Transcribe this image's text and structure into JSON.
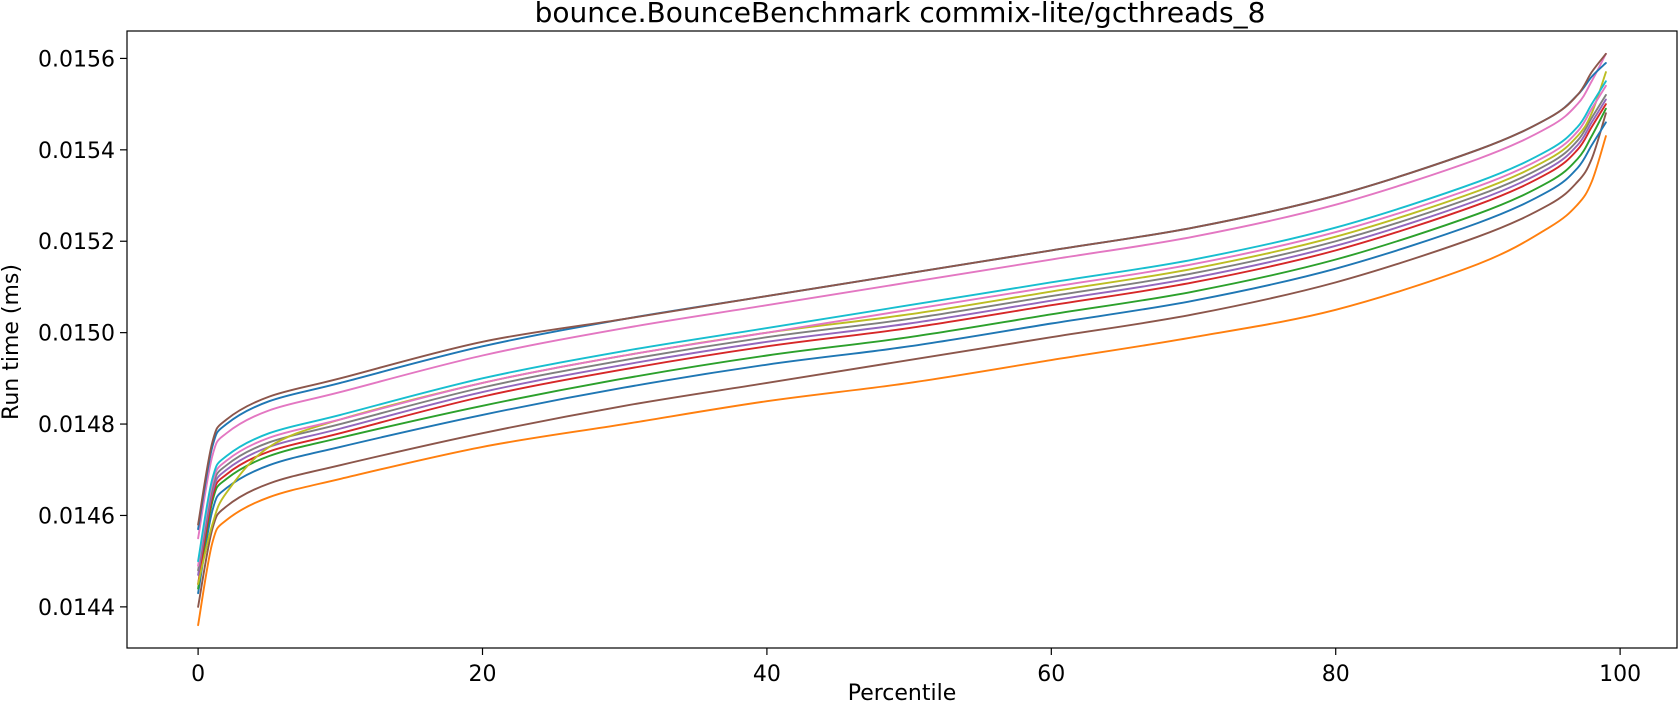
{
  "chart_data": {
    "type": "line",
    "title": "bounce.BounceBenchmark commix-lite/gcthreads_8",
    "xlabel": "Percentile",
    "ylabel": "Run time (ms)",
    "xlim": [
      -5,
      104
    ],
    "ylim": [
      0.01431,
      0.01566
    ],
    "xticks": [
      0,
      20,
      40,
      60,
      80,
      100
    ],
    "xtick_labels": [
      "0",
      "20",
      "40",
      "60",
      "80",
      "100"
    ],
    "yticks": [
      0.0144,
      0.0146,
      0.0148,
      0.015,
      0.0152,
      0.0154,
      0.0156
    ],
    "ytick_labels": [
      "0.0144",
      "0.0146",
      "0.0148",
      "0.0150",
      "0.0152",
      "0.0154",
      "0.0156"
    ],
    "grid": false,
    "x": [
      0,
      1,
      2,
      5,
      10,
      20,
      30,
      40,
      50,
      60,
      70,
      80,
      90,
      95,
      97,
      98,
      99
    ],
    "series": [
      {
        "color": "#ff7f0e",
        "values": [
          0.01436,
          0.01454,
          0.01459,
          0.01464,
          0.01468,
          0.01475,
          0.0148,
          0.01485,
          0.01489,
          0.01494,
          0.01499,
          0.01505,
          0.01515,
          0.01523,
          0.01528,
          0.01533,
          0.01543
        ]
      },
      {
        "color": "#8c564b",
        "values": [
          0.0144,
          0.01457,
          0.01462,
          0.01467,
          0.01471,
          0.01478,
          0.01484,
          0.01489,
          0.01494,
          0.01499,
          0.01504,
          0.01511,
          0.01521,
          0.01528,
          0.01533,
          0.01538,
          0.01548
        ]
      },
      {
        "color": "#1f77b4",
        "values": [
          0.01443,
          0.01461,
          0.01466,
          0.01471,
          0.01475,
          0.01482,
          0.01488,
          0.01493,
          0.01497,
          0.01502,
          0.01507,
          0.01514,
          0.01524,
          0.01531,
          0.01536,
          0.01541,
          0.01546
        ]
      },
      {
        "color": "#2ca02c",
        "values": [
          0.01444,
          0.01463,
          0.01468,
          0.01473,
          0.01477,
          0.01484,
          0.0149,
          0.01495,
          0.01499,
          0.01504,
          0.01509,
          0.01516,
          0.01526,
          0.01533,
          0.01538,
          0.01543,
          0.01549
        ]
      },
      {
        "color": "#d62728",
        "values": [
          0.01445,
          0.01464,
          0.01469,
          0.01474,
          0.01478,
          0.01486,
          0.01492,
          0.01497,
          0.01501,
          0.01506,
          0.01511,
          0.01518,
          0.01528,
          0.01535,
          0.0154,
          0.01545,
          0.0155
        ]
      },
      {
        "color": "#9467bd",
        "values": [
          0.01447,
          0.01465,
          0.0147,
          0.01475,
          0.01479,
          0.01487,
          0.01493,
          0.01498,
          0.01502,
          0.01507,
          0.01512,
          0.01519,
          0.01529,
          0.01536,
          0.01541,
          0.01546,
          0.01551
        ]
      },
      {
        "color": "#7f7f7f",
        "values": [
          0.01448,
          0.01466,
          0.01471,
          0.01476,
          0.0148,
          0.01488,
          0.01494,
          0.01499,
          0.01503,
          0.01508,
          0.01513,
          0.0152,
          0.0153,
          0.01537,
          0.01542,
          0.01547,
          0.01552
        ]
      },
      {
        "color": "#bcbd22",
        "values": [
          0.01445,
          0.01458,
          0.01465,
          0.01475,
          0.01481,
          0.01489,
          0.01495,
          0.015,
          0.01504,
          0.01509,
          0.01514,
          0.01521,
          0.01531,
          0.01538,
          0.01543,
          0.01548,
          0.01557
        ]
      },
      {
        "color": "#e377c2",
        "values": [
          0.01449,
          0.01467,
          0.01472,
          0.01477,
          0.01481,
          0.01489,
          0.01495,
          0.015,
          0.01505,
          0.0151,
          0.01515,
          0.01522,
          0.01532,
          0.01539,
          0.01544,
          0.01549,
          0.01554
        ]
      },
      {
        "color": "#17becf",
        "values": [
          0.0145,
          0.01468,
          0.01473,
          0.01478,
          0.01482,
          0.0149,
          0.01496,
          0.01501,
          0.01506,
          0.01511,
          0.01516,
          0.01523,
          0.01533,
          0.0154,
          0.01545,
          0.0155,
          0.01555
        ]
      },
      {
        "color": "#e377c2",
        "values": [
          0.01455,
          0.01473,
          0.01478,
          0.01483,
          0.01487,
          0.01495,
          0.01501,
          0.01506,
          0.01511,
          0.01516,
          0.01521,
          0.01528,
          0.01538,
          0.01545,
          0.0155,
          0.01555,
          0.01561
        ]
      },
      {
        "color": "#1f77b4",
        "values": [
          0.01457,
          0.01475,
          0.0148,
          0.01485,
          0.01489,
          0.01497,
          0.01503,
          0.01508,
          0.01513,
          0.01518,
          0.01523,
          0.0153,
          0.0154,
          0.01547,
          0.01552,
          0.01556,
          0.01559
        ]
      },
      {
        "color": "#8c564b",
        "values": [
          0.01458,
          0.01476,
          0.01481,
          0.01486,
          0.0149,
          0.01498,
          0.01503,
          0.01508,
          0.01513,
          0.01518,
          0.01523,
          0.0153,
          0.0154,
          0.01547,
          0.01552,
          0.01557,
          0.01561
        ]
      }
    ]
  }
}
